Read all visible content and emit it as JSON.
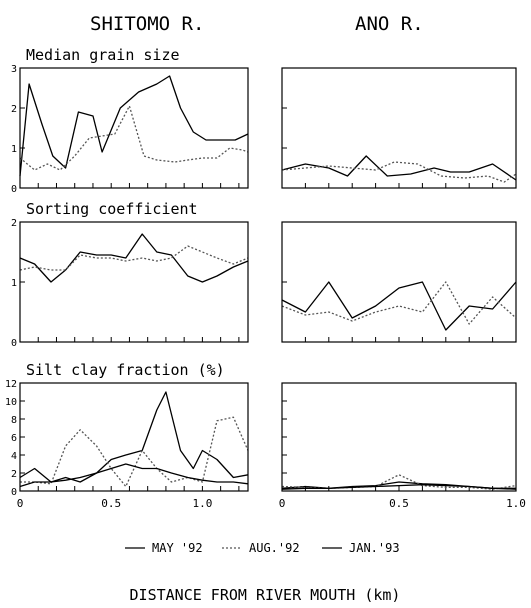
{
  "figure": {
    "col_titles": [
      "SHITOMO R.",
      "ANO R."
    ],
    "xlabel": "DISTANCE FROM RIVER MOUTH (km)",
    "legend": [
      "MAY '92",
      "AUG.'92",
      "JAN.'93"
    ],
    "series_colors": [
      "#000000",
      "#555555",
      "#000000"
    ],
    "series_dash": [
      "none",
      "2,2",
      "none"
    ]
  },
  "chart_data": [
    {
      "type": "line",
      "panel_title": "Median grain size",
      "river": "SHITOMO R.",
      "xlim": [
        0,
        1.25
      ],
      "ylim": [
        0,
        3
      ],
      "yticks": [
        0,
        1,
        2,
        3
      ],
      "ytick_labels": [
        "0",
        "1",
        "2",
        "3"
      ],
      "xticks": [
        0,
        0.5,
        1.0
      ],
      "xtick_labels": [
        "",
        "",
        ""
      ],
      "series": [
        {
          "name": "MAY '92",
          "x": [
            0,
            0.05,
            0.12,
            0.18,
            0.25,
            0.32,
            0.4,
            0.45,
            0.55,
            0.65,
            0.75,
            0.82,
            0.88,
            0.95,
            1.02,
            1.1,
            1.18,
            1.25
          ],
          "y": [
            0.3,
            2.6,
            1.6,
            0.8,
            0.5,
            1.9,
            1.8,
            0.9,
            2.0,
            2.4,
            2.6,
            2.8,
            2.0,
            1.4,
            1.2,
            1.2,
            1.2,
            1.35
          ]
        },
        {
          "name": "AUG.'92",
          "x": [
            0,
            0.08,
            0.15,
            0.22,
            0.3,
            0.38,
            0.45,
            0.52,
            0.6,
            0.68,
            0.75,
            0.85,
            0.92,
            1.0,
            1.08,
            1.15,
            1.22,
            1.25
          ],
          "y": [
            0.75,
            0.45,
            0.6,
            0.45,
            0.8,
            1.25,
            1.3,
            1.35,
            2.05,
            0.8,
            0.7,
            0.65,
            0.7,
            0.75,
            0.75,
            1.0,
            0.95,
            0.9
          ]
        },
        {
          "name": "JAN.'93",
          "x": [],
          "y": []
        }
      ]
    },
    {
      "type": "line",
      "panel_title": "",
      "river": "ANO R.",
      "xlim": [
        0,
        1.0
      ],
      "ylim": [
        0,
        3
      ],
      "yticks": [
        0,
        1,
        2,
        3
      ],
      "ytick_labels": [
        "",
        "",
        "",
        ""
      ],
      "xticks": [
        0,
        0.5,
        1.0
      ],
      "xtick_labels": [
        "",
        "",
        ""
      ],
      "series": [
        {
          "name": "MAY '92",
          "x": [
            0,
            0.1,
            0.2,
            0.28,
            0.36,
            0.45,
            0.55,
            0.65,
            0.72,
            0.8,
            0.9,
            1.0
          ],
          "y": [
            0.45,
            0.6,
            0.5,
            0.3,
            0.8,
            0.3,
            0.35,
            0.5,
            0.4,
            0.4,
            0.6,
            0.2
          ]
        },
        {
          "name": "AUG.'92",
          "x": [
            0,
            0.1,
            0.2,
            0.3,
            0.4,
            0.48,
            0.58,
            0.68,
            0.78,
            0.88,
            0.95,
            1.0
          ],
          "y": [
            0.45,
            0.5,
            0.55,
            0.5,
            0.45,
            0.65,
            0.6,
            0.3,
            0.25,
            0.3,
            0.15,
            0.35
          ]
        },
        {
          "name": "JAN.'93",
          "x": [],
          "y": []
        }
      ]
    },
    {
      "type": "line",
      "panel_title": "Sorting coefficient",
      "river": "SHITOMO R.",
      "xlim": [
        0,
        1.25
      ],
      "ylim": [
        0,
        2
      ],
      "yticks": [
        0,
        1,
        2
      ],
      "ytick_labels": [
        "0",
        "1",
        "2"
      ],
      "xticks": [
        0,
        0.5,
        1.0
      ],
      "xtick_labels": [
        "",
        "",
        ""
      ],
      "series": [
        {
          "name": "MAY '92",
          "x": [
            0,
            0.08,
            0.17,
            0.25,
            0.33,
            0.42,
            0.5,
            0.58,
            0.67,
            0.75,
            0.83,
            0.92,
            1.0,
            1.08,
            1.17,
            1.25
          ],
          "y": [
            1.4,
            1.3,
            1.0,
            1.2,
            1.5,
            1.45,
            1.45,
            1.4,
            1.8,
            1.5,
            1.45,
            1.1,
            1.0,
            1.1,
            1.25,
            1.35
          ]
        },
        {
          "name": "AUG.'92",
          "x": [
            0,
            0.08,
            0.17,
            0.25,
            0.33,
            0.42,
            0.5,
            0.58,
            0.67,
            0.75,
            0.83,
            0.92,
            1.0,
            1.08,
            1.17,
            1.25
          ],
          "y": [
            1.2,
            1.25,
            1.2,
            1.2,
            1.45,
            1.4,
            1.4,
            1.35,
            1.4,
            1.35,
            1.4,
            1.6,
            1.5,
            1.4,
            1.3,
            1.4
          ]
        },
        {
          "name": "JAN.'93",
          "x": [],
          "y": []
        }
      ]
    },
    {
      "type": "line",
      "panel_title": "",
      "river": "ANO R.",
      "xlim": [
        0,
        1.0
      ],
      "ylim": [
        0,
        2
      ],
      "yticks": [
        0,
        1,
        2
      ],
      "ytick_labels": [
        "",
        "",
        ""
      ],
      "xticks": [
        0,
        0.5,
        1.0
      ],
      "xtick_labels": [
        "",
        "",
        ""
      ],
      "series": [
        {
          "name": "MAY '92",
          "x": [
            0,
            0.1,
            0.2,
            0.3,
            0.4,
            0.5,
            0.6,
            0.7,
            0.8,
            0.9,
            1.0
          ],
          "y": [
            0.7,
            0.5,
            1.0,
            0.4,
            0.6,
            0.9,
            1.0,
            0.2,
            0.6,
            0.55,
            1.0
          ]
        },
        {
          "name": "AUG.'92",
          "x": [
            0,
            0.1,
            0.2,
            0.3,
            0.4,
            0.5,
            0.6,
            0.7,
            0.8,
            0.9,
            1.0
          ],
          "y": [
            0.6,
            0.45,
            0.5,
            0.35,
            0.5,
            0.6,
            0.5,
            1.0,
            0.3,
            0.75,
            0.4
          ]
        },
        {
          "name": "JAN.'93",
          "x": [],
          "y": []
        }
      ]
    },
    {
      "type": "line",
      "panel_title": "Silt clay fraction (%)",
      "river": "SHITOMO R.",
      "xlim": [
        0,
        1.25
      ],
      "ylim": [
        0,
        12
      ],
      "yticks": [
        0,
        2,
        4,
        6,
        8,
        10,
        12
      ],
      "ytick_labels": [
        "0",
        "2",
        "4",
        "6",
        "8",
        "10",
        "12"
      ],
      "xticks": [
        0,
        0.5,
        1.0
      ],
      "xtick_labels": [
        "0",
        "0.5",
        "1.0"
      ],
      "series": [
        {
          "name": "MAY '92",
          "x": [
            0,
            0.08,
            0.17,
            0.25,
            0.33,
            0.42,
            0.5,
            0.58,
            0.67,
            0.75,
            0.8,
            0.88,
            0.95,
            1.0,
            1.08,
            1.17,
            1.25
          ],
          "y": [
            1.5,
            2.5,
            1.0,
            1.5,
            1.0,
            2.0,
            3.5,
            4.0,
            4.5,
            9.0,
            11.0,
            4.5,
            2.5,
            4.5,
            3.5,
            1.5,
            1.8
          ]
        },
        {
          "name": "AUG.'92",
          "x": [
            0,
            0.08,
            0.17,
            0.25,
            0.33,
            0.42,
            0.5,
            0.58,
            0.67,
            0.75,
            0.83,
            0.92,
            1.0,
            1.08,
            1.17,
            1.25
          ],
          "y": [
            1.0,
            1.0,
            0.8,
            5.0,
            6.8,
            5.0,
            2.5,
            0.5,
            4.5,
            2.5,
            1.0,
            1.5,
            1.0,
            7.8,
            8.2,
            4.5
          ]
        },
        {
          "name": "JAN.'93",
          "x": [
            0,
            0.08,
            0.17,
            0.25,
            0.33,
            0.42,
            0.5,
            0.58,
            0.67,
            0.75,
            0.83,
            0.92,
            1.0,
            1.08,
            1.17,
            1.25
          ],
          "y": [
            0.5,
            1.0,
            1.0,
            1.2,
            1.5,
            2.0,
            2.5,
            3.0,
            2.5,
            2.5,
            2.0,
            1.5,
            1.2,
            1.0,
            1.0,
            0.8
          ]
        }
      ]
    },
    {
      "type": "line",
      "panel_title": "",
      "river": "ANO R.",
      "xlim": [
        0,
        1.0
      ],
      "ylim": [
        0,
        12
      ],
      "yticks": [
        0,
        2,
        4,
        6,
        8,
        10,
        12
      ],
      "ytick_labels": [
        "",
        "",
        "",
        "",
        "",
        "",
        ""
      ],
      "xticks": [
        0,
        0.5,
        1.0
      ],
      "xtick_labels": [
        "0",
        "0.5",
        "1.0"
      ],
      "series": [
        {
          "name": "MAY '92",
          "x": [
            0,
            0.1,
            0.2,
            0.3,
            0.4,
            0.5,
            0.6,
            0.7,
            0.8,
            0.9,
            1.0
          ],
          "y": [
            0.3,
            0.5,
            0.3,
            0.5,
            0.6,
            1.0,
            0.8,
            0.7,
            0.5,
            0.3,
            0.3
          ]
        },
        {
          "name": "AUG.'92",
          "x": [
            0,
            0.1,
            0.2,
            0.3,
            0.4,
            0.5,
            0.6,
            0.7,
            0.8,
            0.9,
            1.0
          ],
          "y": [
            0.5,
            0.4,
            0.3,
            0.4,
            0.5,
            1.8,
            0.6,
            0.4,
            0.4,
            0.2,
            0.6
          ]
        },
        {
          "name": "JAN.'93",
          "x": [
            0,
            0.1,
            0.2,
            0.3,
            0.4,
            0.5,
            0.6,
            0.7,
            0.8,
            0.9,
            1.0
          ],
          "y": [
            0.2,
            0.3,
            0.3,
            0.4,
            0.5,
            0.6,
            0.7,
            0.6,
            0.5,
            0.3,
            0.2
          ]
        }
      ]
    }
  ]
}
